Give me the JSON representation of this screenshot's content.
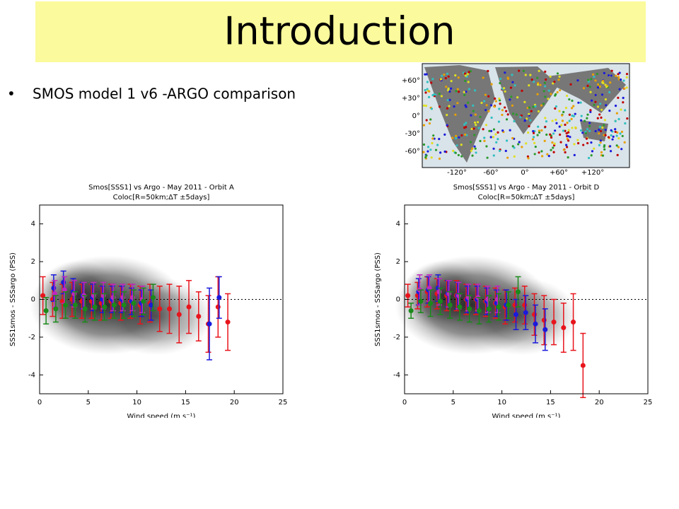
{
  "title": "Introduction",
  "bullet": "SMOS model 1 v6 -ARGO comparison",
  "map": {
    "yticks": [
      "+60°",
      "+30°",
      "0°",
      "-30°",
      "-60°"
    ],
    "xticks": [
      "-120°",
      "-60°",
      "0°",
      "+60°",
      "+120°"
    ]
  },
  "chart_data": [
    {
      "type": "errorbar",
      "title": "Smos[SSS1] vs Argo - May 2011 - Orbit A",
      "subtitle": "Coloc[R=50km;ΔT ±5days]",
      "xlabel": "Wind speed (m s⁻¹)",
      "ylabel": "SSS1smos - SSSargo (PSS)",
      "xlim": [
        0,
        25
      ],
      "ylim": [
        -5,
        5
      ],
      "xticks": [
        0,
        5,
        10,
        15,
        20,
        25
      ],
      "yticks": [
        -4,
        -2,
        0,
        2,
        4
      ],
      "reference_y": 0,
      "series": [
        {
          "color": "#e8141c",
          "x": [
            0.5,
            1.5,
            2.5,
            3.5,
            4.5,
            5.5,
            6.5,
            7.5,
            8.5,
            9.5,
            10.5,
            11.5,
            12.5,
            13.5,
            14.5,
            15.5,
            16.5,
            17.5,
            18.5,
            19.5
          ],
          "values": [
            0.2,
            0.0,
            -0.1,
            0.0,
            -0.1,
            -0.1,
            -0.2,
            -0.1,
            -0.2,
            -0.1,
            -0.3,
            -0.2,
            -0.5,
            -0.5,
            -0.8,
            -0.4,
            -0.9,
            -1.3,
            -0.4,
            -1.2
          ],
          "errors": [
            1.0,
            0.9,
            0.9,
            0.9,
            0.9,
            0.9,
            0.9,
            0.9,
            0.9,
            0.9,
            1.0,
            1.0,
            1.2,
            1.3,
            1.5,
            1.4,
            1.3,
            1.5,
            1.6,
            1.5
          ]
        },
        {
          "color": "#1a1adc",
          "x": [
            1.5,
            2.5,
            3.5,
            4.5,
            5.5,
            6.5,
            7.5,
            8.5,
            9.5,
            10.5,
            11.5,
            17.5,
            18.5
          ],
          "values": [
            0.6,
            0.9,
            0.4,
            0.2,
            0.1,
            0.0,
            0.0,
            0.0,
            -0.1,
            -0.2,
            -0.3,
            -1.3,
            0.1
          ],
          "errors": [
            0.7,
            0.6,
            0.7,
            0.7,
            0.7,
            0.7,
            0.7,
            0.7,
            0.7,
            0.7,
            0.8,
            1.9,
            1.1
          ]
        },
        {
          "color": "#c026c0",
          "x": [
            1.5,
            2.5,
            3.5,
            4.5,
            5.5,
            6.5,
            7.5,
            8.5,
            9.5,
            10.5
          ],
          "values": [
            0.3,
            0.5,
            0.3,
            0.2,
            0.2,
            0.2,
            0.1,
            0.1,
            0.1,
            0.0
          ],
          "errors": [
            0.7,
            0.7,
            0.7,
            0.7,
            0.7,
            0.7,
            0.7,
            0.7,
            0.7,
            0.7
          ]
        },
        {
          "color": "#1a8a1a",
          "x": [
            0.5,
            1.5,
            2.5,
            3.5,
            4.5,
            5.5,
            6.5,
            7.5,
            8.5,
            9.5,
            10.5,
            11.5
          ],
          "values": [
            -0.6,
            -0.5,
            -0.3,
            -0.3,
            -0.5,
            -0.4,
            -0.4,
            -0.3,
            -0.3,
            -0.2,
            -0.1,
            0.1
          ],
          "errors": [
            0.7,
            0.7,
            0.7,
            0.7,
            0.7,
            0.7,
            0.7,
            0.7,
            0.7,
            0.7,
            0.7,
            0.7
          ]
        }
      ]
    },
    {
      "type": "errorbar",
      "title": "Smos[SSS1] vs Argo - May 2011 - Orbit D",
      "subtitle": "Coloc[R=50km;ΔT ±5days]",
      "xlabel": "Wind speed (m s⁻¹)",
      "ylabel": "SSS1smos - SSSargo (PSS)",
      "xlim": [
        0,
        25
      ],
      "ylim": [
        -5,
        5
      ],
      "xticks": [
        0,
        5,
        10,
        15,
        20,
        25
      ],
      "yticks": [
        -4,
        -2,
        0,
        2,
        4
      ],
      "reference_y": 0,
      "series": [
        {
          "color": "#e8141c",
          "x": [
            0.5,
            1.5,
            2.5,
            3.5,
            4.5,
            5.5,
            6.5,
            7.5,
            8.5,
            9.5,
            10.5,
            11.5,
            12.5,
            13.5,
            14.5,
            15.5,
            16.5,
            17.5,
            18.5
          ],
          "values": [
            0.2,
            0.2,
            0.4,
            0.3,
            0.2,
            0.2,
            0.0,
            0.0,
            -0.1,
            -0.2,
            -0.4,
            -0.3,
            -0.3,
            -0.8,
            -1.1,
            -1.2,
            -1.5,
            -1.2,
            -3.5
          ],
          "errors": [
            0.6,
            0.7,
            0.8,
            0.8,
            0.8,
            0.8,
            0.8,
            0.8,
            0.8,
            0.8,
            0.9,
            0.9,
            1.0,
            1.1,
            1.3,
            1.2,
            1.3,
            1.5,
            1.7
          ]
        },
        {
          "color": "#1a1adc",
          "x": [
            1.5,
            2.5,
            3.5,
            4.5,
            5.5,
            6.5,
            7.5,
            8.5,
            9.5,
            10.5,
            11.5,
            12.5,
            13.5,
            14.5
          ],
          "values": [
            0.4,
            0.5,
            0.6,
            0.3,
            0.2,
            0.0,
            0.0,
            -0.1,
            -0.2,
            -0.3,
            -0.8,
            -0.7,
            -1.3,
            -1.6
          ],
          "errors": [
            0.7,
            0.7,
            0.7,
            0.7,
            0.7,
            0.7,
            0.7,
            0.7,
            0.7,
            0.8,
            0.8,
            0.9,
            1.0,
            1.1
          ]
        },
        {
          "color": "#c026c0",
          "x": [
            1.5,
            2.5,
            3.5,
            4.5,
            5.5,
            6.5,
            7.5,
            8.5,
            9.5
          ],
          "values": [
            0.5,
            0.6,
            0.4,
            0.3,
            0.2,
            0.1,
            0.1,
            0.0,
            0.0
          ],
          "errors": [
            0.8,
            0.7,
            0.7,
            0.7,
            0.7,
            0.7,
            0.7,
            0.7,
            0.7
          ]
        },
        {
          "color": "#1a8a1a",
          "x": [
            0.5,
            1.5,
            2.5,
            3.5,
            4.5,
            5.5,
            6.5,
            7.5,
            8.5,
            9.5,
            10.5,
            11.5
          ],
          "values": [
            -0.6,
            -0.1,
            -0.2,
            -0.1,
            -0.3,
            -0.4,
            -0.5,
            -0.6,
            -0.5,
            -0.4,
            -0.3,
            0.4
          ],
          "errors": [
            0.4,
            0.6,
            0.7,
            0.7,
            0.7,
            0.7,
            0.7,
            0.7,
            0.7,
            0.7,
            0.7,
            0.8
          ]
        }
      ]
    }
  ]
}
